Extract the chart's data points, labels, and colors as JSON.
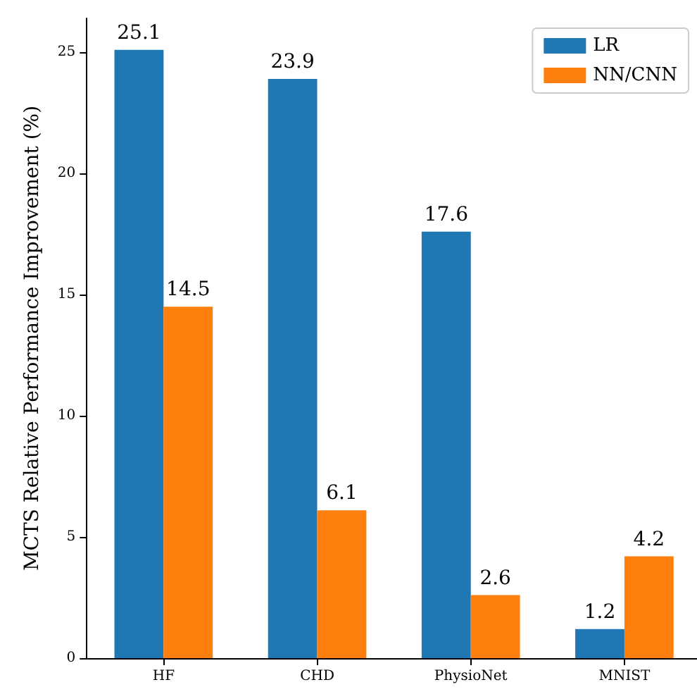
{
  "chart_data": {
    "type": "bar",
    "ylabel": "MCTS Relative Performance Improvement (%)",
    "categories": [
      "HF",
      "CHD",
      "PhysioNet",
      "MNIST"
    ],
    "series": [
      {
        "name": "LR",
        "color": "#1f77b4",
        "values": [
          25.1,
          23.9,
          17.6,
          1.2
        ]
      },
      {
        "name": "NN/CNN",
        "color": "#ff7f0e",
        "values": [
          14.5,
          6.1,
          2.6,
          4.2
        ]
      }
    ],
    "ylim": [
      0,
      26.4
    ],
    "yticks": [
      0,
      5,
      10,
      15,
      20,
      25
    ],
    "grid": false,
    "legend": "top right",
    "data_labels": true
  }
}
